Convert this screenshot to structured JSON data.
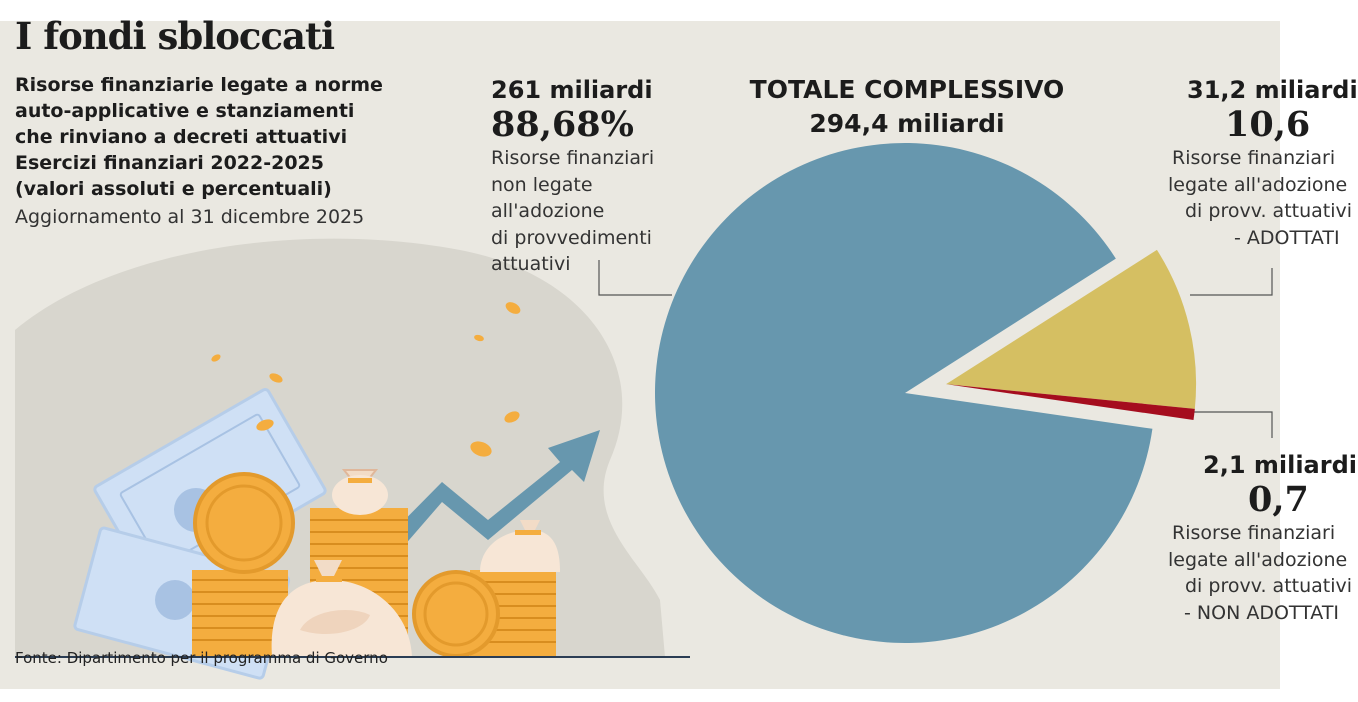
{
  "header": {
    "title": "I fondi sbloccati",
    "subtitle_lines": [
      "Risorse finanziarie legate a norme",
      "auto-applicative e stanziamenti",
      "che rinviano a decreti attuativi",
      "Esercizi finanziari 2022-2025",
      "(valori assoluti e percentuali)"
    ],
    "update": "Aggiornamento al 31 dicembre 2025"
  },
  "footer": {
    "source": "Fonte: Dipartimento per il programma di Governo"
  },
  "colors": {
    "background": "#eae8e1",
    "blue": "#6797ae",
    "yellow": "#d5bf62",
    "red": "#a50d1e",
    "coin": "#f4ad3f",
    "bill": "#cfe0f5"
  },
  "illustration": {
    "icons": [
      "banknote-icon",
      "coin-icon",
      "money-bag-icon",
      "growth-arrow-icon"
    ]
  },
  "labels": {
    "total_title": "TOTALE COMPLESSIVO",
    "total_value": "294,4 miliardi",
    "slice1": {
      "amount": "261 miliardi",
      "percent": "88,68%",
      "desc": [
        "Risorse finanziari",
        "non legate",
        "all'adozione",
        "di provvedimenti",
        "attuativi"
      ]
    },
    "slice2": {
      "amount": "31,2 miliardi",
      "percent": "10,6",
      "desc": [
        "Risorse finanziari",
        "legate all'adozione",
        "di provv. attuativi",
        "- ADOTTATI"
      ]
    },
    "slice3": {
      "amount": "2,1 miliardi",
      "percent": "0,7",
      "desc": [
        "Risorse finanziari",
        "legate all'adozione",
        "di provv. attuativi",
        "- NON ADOTTATI"
      ]
    }
  },
  "chart_data": {
    "type": "pie",
    "title": "TOTALE COMPLESSIVO",
    "total": 294.4,
    "unit": "miliardi",
    "slices": [
      {
        "value": 261,
        "percent": 88.68,
        "color": "#6797ae",
        "exploded": false
      },
      {
        "value": 31.2,
        "percent": 10.6,
        "color": "#d5bf62",
        "exploded": true
      },
      {
        "value": 2.1,
        "percent": 0.7,
        "color": "#a50d1e",
        "exploded": true
      }
    ]
  }
}
